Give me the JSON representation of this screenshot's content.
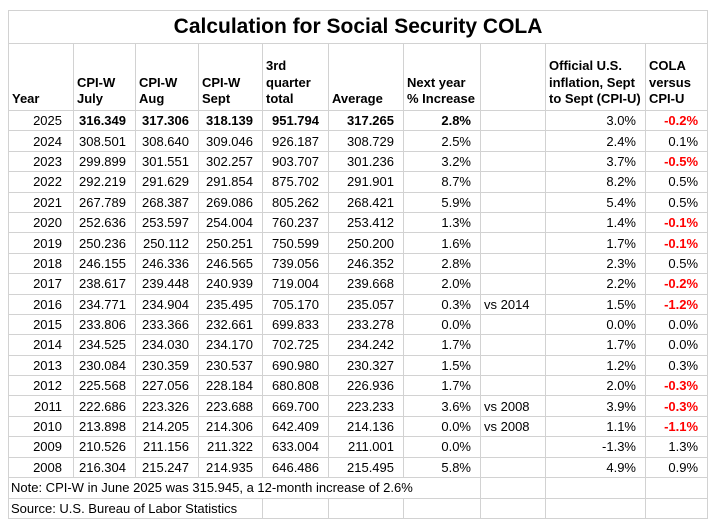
{
  "title": "Calculation for Social Security COLA",
  "colors": {
    "negative_cola_text": "#ff0000",
    "gridline": "#d2d2d2",
    "text": "#000000",
    "background": "#ffffff"
  },
  "table": {
    "headers": [
      "Year",
      "CPI-W\nJuly",
      "CPI-W\nAug",
      "CPI-W\nSept",
      "3rd\nquarter\ntotal",
      "Average",
      "Next year\n% Increase",
      "",
      "Official U.S.\ninflation, Sept\nto Sept (CPI-U)",
      "COLA\nversus\nCPI-U"
    ],
    "bold_year": "2025",
    "rows": [
      [
        "2025",
        "316.349",
        "317.306",
        "318.139",
        "951.794",
        "317.265",
        "2.8%",
        "",
        "3.0%",
        "-0.2%"
      ],
      [
        "2024",
        "308.501",
        "308.640",
        "309.046",
        "926.187",
        "308.729",
        "2.5%",
        "",
        "2.4%",
        "0.1%"
      ],
      [
        "2023",
        "299.899",
        "301.551",
        "302.257",
        "903.707",
        "301.236",
        "3.2%",
        "",
        "3.7%",
        "-0.5%"
      ],
      [
        "2022",
        "292.219",
        "291.629",
        "291.854",
        "875.702",
        "291.901",
        "8.7%",
        "",
        "8.2%",
        "0.5%"
      ],
      [
        "2021",
        "267.789",
        "268.387",
        "269.086",
        "805.262",
        "268.421",
        "5.9%",
        "",
        "5.4%",
        "0.5%"
      ],
      [
        "2020",
        "252.636",
        "253.597",
        "254.004",
        "760.237",
        "253.412",
        "1.3%",
        "",
        "1.4%",
        "-0.1%"
      ],
      [
        "2019",
        "250.236",
        "250.112",
        "250.251",
        "750.599",
        "250.200",
        "1.6%",
        "",
        "1.7%",
        "-0.1%"
      ],
      [
        "2018",
        "246.155",
        "246.336",
        "246.565",
        "739.056",
        "246.352",
        "2.8%",
        "",
        "2.3%",
        "0.5%"
      ],
      [
        "2017",
        "238.617",
        "239.448",
        "240.939",
        "719.004",
        "239.668",
        "2.0%",
        "",
        "2.2%",
        "-0.2%"
      ],
      [
        "2016",
        "234.771",
        "234.904",
        "235.495",
        "705.170",
        "235.057",
        "0.3%",
        "vs 2014",
        "1.5%",
        "-1.2%"
      ],
      [
        "2015",
        "233.806",
        "233.366",
        "232.661",
        "699.833",
        "233.278",
        "0.0%",
        "",
        "0.0%",
        "0.0%"
      ],
      [
        "2014",
        "234.525",
        "234.030",
        "234.170",
        "702.725",
        "234.242",
        "1.7%",
        "",
        "1.7%",
        "0.0%"
      ],
      [
        "2013",
        "230.084",
        "230.359",
        "230.537",
        "690.980",
        "230.327",
        "1.5%",
        "",
        "1.2%",
        "0.3%"
      ],
      [
        "2012",
        "225.568",
        "227.056",
        "228.184",
        "680.808",
        "226.936",
        "1.7%",
        "",
        "2.0%",
        "-0.3%"
      ],
      [
        "2011",
        "222.686",
        "223.326",
        "223.688",
        "669.700",
        "223.233",
        "3.6%",
        "vs 2008",
        "3.9%",
        "-0.3%"
      ],
      [
        "2010",
        "213.898",
        "214.205",
        "214.306",
        "642.409",
        "214.136",
        "0.0%",
        "vs 2008",
        "1.1%",
        "-1.1%"
      ],
      [
        "2009",
        "210.526",
        "211.156",
        "211.322",
        "633.004",
        "211.001",
        "0.0%",
        "",
        "-1.3%",
        "1.3%"
      ],
      [
        "2008",
        "216.304",
        "215.247",
        "214.935",
        "646.486",
        "215.495",
        "5.8%",
        "",
        "4.9%",
        "0.9%"
      ]
    ],
    "note": "Note: CPI-W in June 2025 was 315.945, a 12-month increase of 2.6%",
    "source": "Source: U.S. Bureau of Labor Statistics"
  }
}
